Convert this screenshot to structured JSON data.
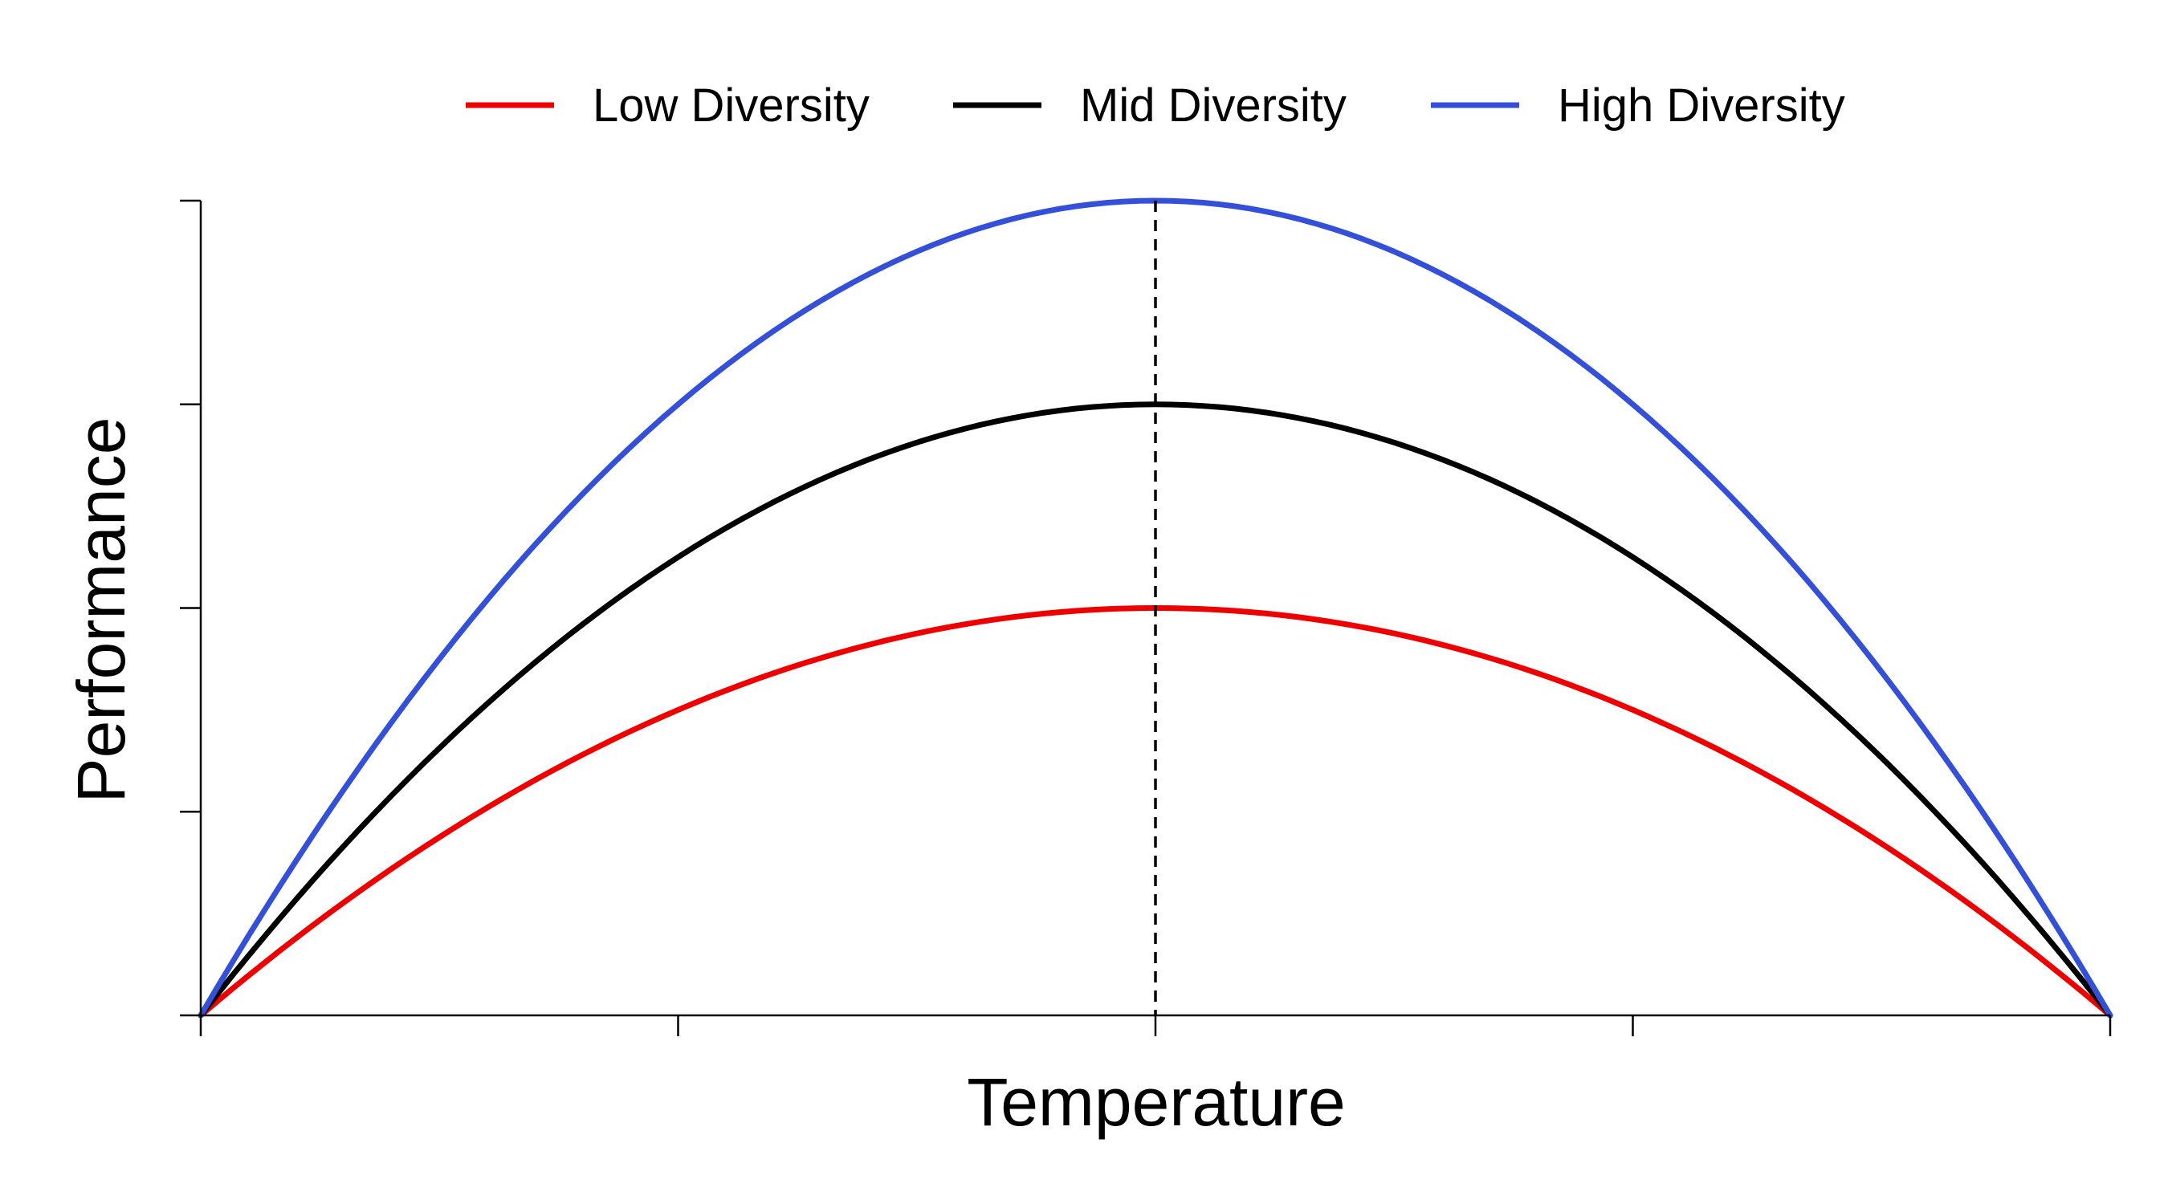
{
  "chart_data": {
    "type": "line",
    "xlabel": "Temperature",
    "ylabel": "Performance",
    "xlim": [
      0,
      1
    ],
    "ylim": [
      0,
      1
    ],
    "x_ticks": [
      0,
      0.25,
      0.5,
      0.75,
      1
    ],
    "y_ticks": [
      0,
      0.25,
      0.5,
      0.75,
      1
    ],
    "tick_labels_shown": false,
    "grid": false,
    "legend_position": "top",
    "reference_line": {
      "x": 0.5,
      "style": "dashed",
      "color": "#000000"
    },
    "series": [
      {
        "name": "Low Diversity",
        "color": "#ee0000",
        "peak_x": 0.5,
        "peak_y": 0.5,
        "shape": "parabola"
      },
      {
        "name": "Mid Diversity",
        "color": "#000000",
        "peak_x": 0.5,
        "peak_y": 0.75,
        "shape": "parabola"
      },
      {
        "name": "High Diversity",
        "color": "#3550d8",
        "peak_x": 0.5,
        "peak_y": 1.0,
        "shape": "parabola"
      }
    ]
  }
}
